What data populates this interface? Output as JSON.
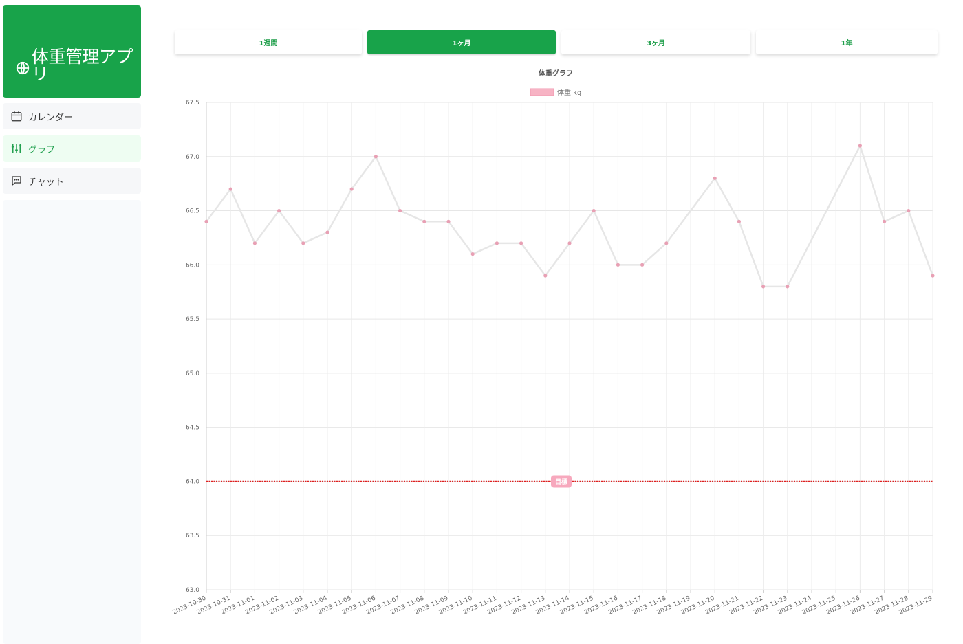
{
  "app": {
    "title": "体重管理アプリ"
  },
  "sidebar": {
    "items": [
      {
        "label": "カレンダー",
        "icon": "calendar-icon"
      },
      {
        "label": "グラフ",
        "icon": "sliders-icon",
        "active": true
      },
      {
        "label": "チャット",
        "icon": "chat-icon"
      }
    ]
  },
  "tabs": [
    {
      "label": "1週間"
    },
    {
      "label": "1ヶ月",
      "active": true
    },
    {
      "label": "3ヶ月"
    },
    {
      "label": "1年"
    }
  ],
  "colors": {
    "brand": "#18a34a",
    "line": "#e6e6e6",
    "point": "#e8a0b4",
    "goal": "#e02020",
    "goal_badge": "#f7a8bd"
  },
  "chart_data": {
    "type": "line",
    "title": "体重グラフ",
    "legend": {
      "label": "体重 kg",
      "position": "top"
    },
    "x": [
      "2023-10-30",
      "2023-10-31",
      "2023-11-01",
      "2023-11-02",
      "2023-11-03",
      "2023-11-04",
      "2023-11-05",
      "2023-11-06",
      "2023-11-07",
      "2023-11-08",
      "2023-11-09",
      "2023-11-10",
      "2023-11-11",
      "2023-11-12",
      "2023-11-13",
      "2023-11-14",
      "2023-11-15",
      "2023-11-16",
      "2023-11-17",
      "2023-11-18",
      "2023-11-19",
      "2023-11-20",
      "2023-11-21",
      "2023-11-22",
      "2023-11-23",
      "2023-11-24",
      "2023-11-25",
      "2023-11-26",
      "2023-11-27",
      "2023-11-28",
      "2023-11-29"
    ],
    "series": [
      {
        "name": "体重 kg",
        "values": [
          66.4,
          66.7,
          66.2,
          66.5,
          66.2,
          66.3,
          66.7,
          67.0,
          66.5,
          66.4,
          66.4,
          66.1,
          66.2,
          66.2,
          65.9,
          66.2,
          66.5,
          66.0,
          66.0,
          66.2,
          null,
          66.8,
          66.4,
          65.8,
          65.8,
          null,
          null,
          67.1,
          66.4,
          66.5,
          65.9
        ]
      }
    ],
    "ylim": [
      63.0,
      67.5
    ],
    "yticks": [
      "67.5",
      "67.0",
      "66.5",
      "66.0",
      "65.5",
      "65.0",
      "64.5",
      "64.0",
      "63.5",
      "63.0"
    ],
    "goal": {
      "value": 64.0,
      "label": "目標"
    },
    "grid": true,
    "span_gaps": true
  }
}
